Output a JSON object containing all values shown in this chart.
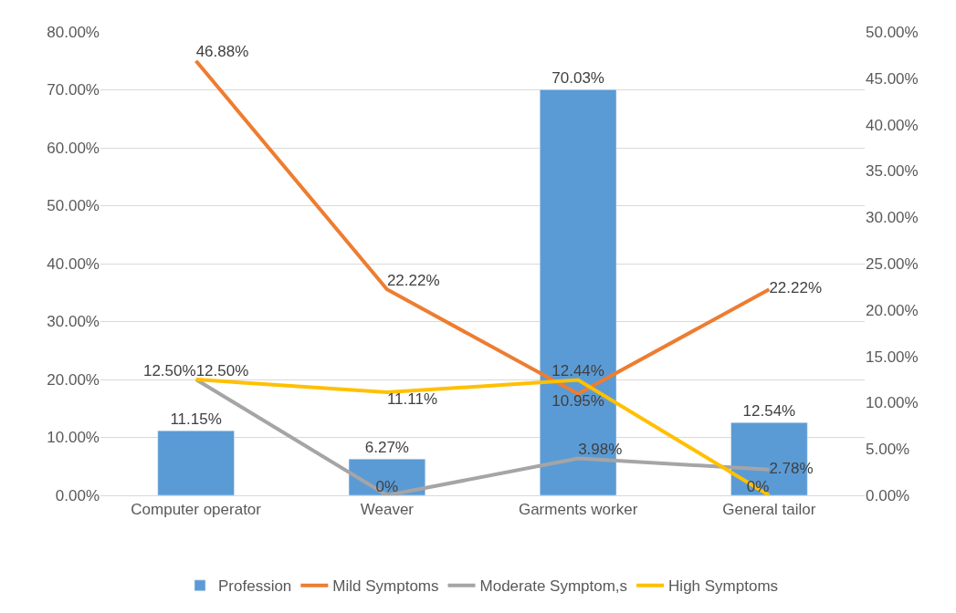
{
  "chart_data": {
    "type": "bar",
    "categories": [
      "Computer operator",
      "Weaver",
      "Garments worker",
      "General tailor"
    ],
    "series": [
      {
        "name": "Profession",
        "color": "#5b9bd5",
        "values": [
          11.15,
          6.27,
          70.03,
          12.54
        ],
        "value_labels": [
          "11.15%",
          "6.27%",
          "70.03%",
          "12.54%"
        ]
      },
      {
        "name": "Mild Symptoms",
        "type": "line",
        "axis": "y2",
        "color": "#ed7d31",
        "values": [
          46.88,
          22.22,
          10.95,
          22.22
        ],
        "value_labels": [
          "46.88%",
          "22.22%",
          "10.95%",
          "22.22%"
        ]
      },
      {
        "name": "Moderate Symptom,s",
        "type": "line",
        "axis": "y2",
        "color": "#a5a5a5",
        "values": [
          12.5,
          0,
          3.98,
          2.78
        ],
        "value_labels": [
          "12.50%",
          "0%",
          "3.98%",
          "2.78%"
        ]
      },
      {
        "name": "High Symptoms",
        "type": "line",
        "axis": "y2",
        "color": "#ffc000",
        "values": [
          12.5,
          11.11,
          12.44,
          0
        ],
        "value_labels": [
          "12.50%",
          "11.11%",
          "12.44%",
          "0%"
        ]
      }
    ],
    "ylim": [
      0,
      80
    ],
    "yticks": [
      {
        "value": 0,
        "label": "0.00%"
      },
      {
        "value": 10,
        "label": "10.00%"
      },
      {
        "value": 20,
        "label": "20.00%"
      },
      {
        "value": 30,
        "label": "30.00%"
      },
      {
        "value": 40,
        "label": "40.00%"
      },
      {
        "value": 50,
        "label": "50.00%"
      },
      {
        "value": 60,
        "label": "60.00%"
      },
      {
        "value": 70,
        "label": "70.00%"
      },
      {
        "value": 80,
        "label": "80.00%"
      }
    ],
    "y2lim": [
      0,
      50
    ],
    "y2ticks": [
      {
        "value": 0,
        "label": "0.00%"
      },
      {
        "value": 5,
        "label": "5.00%"
      },
      {
        "value": 10,
        "label": "10.00%"
      },
      {
        "value": 15,
        "label": "15.00%"
      },
      {
        "value": 20,
        "label": "20.00%"
      },
      {
        "value": 25,
        "label": "25.00%"
      },
      {
        "value": 30,
        "label": "30.00%"
      },
      {
        "value": 35,
        "label": "35.00%"
      },
      {
        "value": 40,
        "label": "40.00%"
      },
      {
        "value": 45,
        "label": "45.00%"
      },
      {
        "value": 50,
        "label": "50.00%"
      }
    ],
    "grid": "y",
    "legend": "bottom",
    "marker": "none",
    "line_style": "solid"
  }
}
